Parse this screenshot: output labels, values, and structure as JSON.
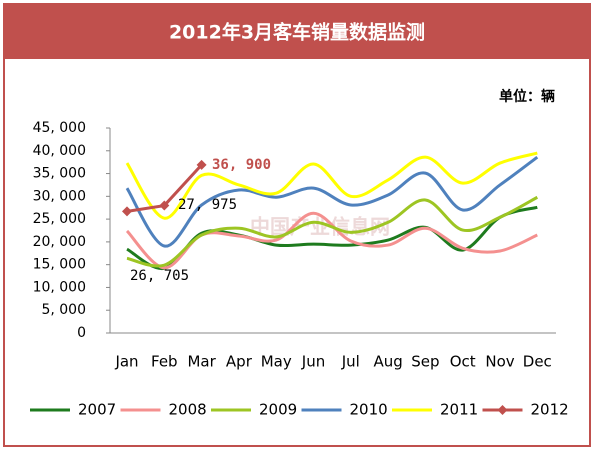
{
  "chart_data": {
    "type": "line",
    "title": "2012年3月客车销量数据监测",
    "unit_label": "单位：辆",
    "watermark": "中国产业信息网",
    "categories": [
      "Jan",
      "Feb",
      "Mar",
      "Apr",
      "May",
      "Jun",
      "Jul",
      "Aug",
      "Sep",
      "Oct",
      "Nov",
      "Dec"
    ],
    "ylim": [
      0,
      45000
    ],
    "yticks": [
      {
        "value": 0,
        "label": "0"
      },
      {
        "value": 5000,
        "label": "5, 000"
      },
      {
        "value": 10000,
        "label": "10, 000"
      },
      {
        "value": 15000,
        "label": "15, 000"
      },
      {
        "value": 20000,
        "label": "20, 000"
      },
      {
        "value": 25000,
        "label": "25, 000"
      },
      {
        "value": 30000,
        "label": "30, 000"
      },
      {
        "value": 35000,
        "label": "35, 000"
      },
      {
        "value": 40000,
        "label": "40, 000"
      },
      {
        "value": 45000,
        "label": "45, 000"
      }
    ],
    "legend": "bottom",
    "series": [
      {
        "name": "2007",
        "color": "#1e7b1e",
        "values": [
          18400,
          14200,
          21900,
          21500,
          19300,
          19500,
          19300,
          20400,
          23200,
          18200,
          25400,
          27600
        ]
      },
      {
        "name": "2008",
        "color": "#f4908f",
        "values": [
          22400,
          14300,
          21500,
          21300,
          20400,
          26300,
          20200,
          19300,
          23000,
          18600,
          18000,
          21500
        ]
      },
      {
        "name": "2009",
        "color": "#9dc523",
        "values": [
          16400,
          14900,
          21500,
          23000,
          21100,
          24300,
          22100,
          24300,
          29200,
          22600,
          25400,
          29800
        ]
      },
      {
        "name": "2010",
        "color": "#4f81bd",
        "values": [
          31800,
          19100,
          28100,
          31400,
          29800,
          31800,
          28100,
          30300,
          35100,
          27000,
          32500,
          38600
        ]
      },
      {
        "name": "2011",
        "color": "#ffff00",
        "values": [
          37300,
          25200,
          34600,
          32500,
          30700,
          37100,
          30000,
          33600,
          38600,
          32900,
          37300,
          39500
        ]
      },
      {
        "name": "2012",
        "color": "#c0504d",
        "markers": true,
        "values": [
          26705,
          27975,
          36900,
          null,
          null,
          null,
          null,
          null,
          null,
          null,
          null,
          null
        ],
        "value_labels": [
          "26, 705",
          "27, 975",
          "36, 900",
          null,
          null,
          null,
          null,
          null,
          null,
          null,
          null,
          null
        ]
      }
    ]
  }
}
